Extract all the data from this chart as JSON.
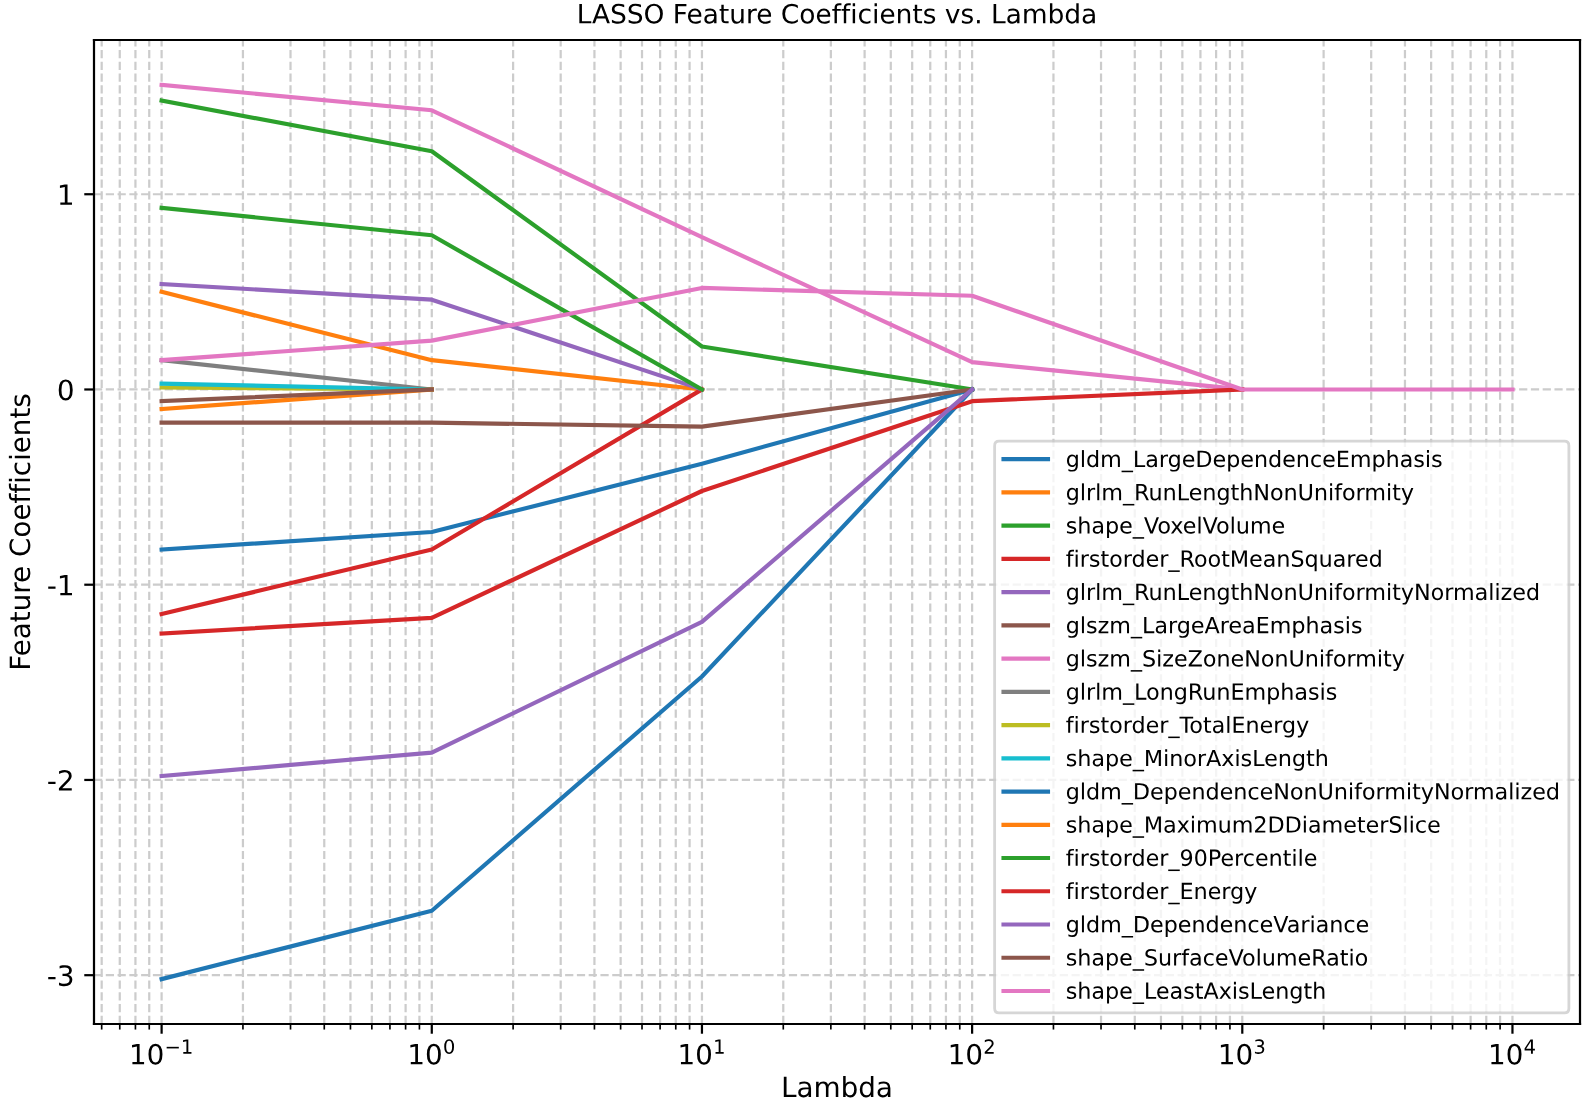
{
  "chart_data": {
    "type": "line",
    "title": "LASSO Feature Coefficients vs. Lambda",
    "xlabel": "Lambda",
    "ylabel": "Feature Coefficients",
    "x": [
      0.1,
      1,
      10,
      100,
      1000,
      10000
    ],
    "log": "x",
    "grid": true,
    "legend": "bottom right",
    "marker": "none",
    "line_style": "solid",
    "xlim": [
      0.0562,
      17783
    ],
    "ylim": [
      -3.25,
      1.79
    ],
    "xticks": [
      {
        "value": 0.1,
        "label": "10$^{−1}$"
      },
      {
        "value": 1,
        "label": "10$^{0}$"
      },
      {
        "value": 10,
        "label": "10$^{1}$"
      },
      {
        "value": 100,
        "label": "10$^{2}$"
      },
      {
        "value": 1000,
        "label": "10$^{3}$"
      },
      {
        "value": 10000,
        "label": "10$^{4}$"
      }
    ],
    "yticks": [
      -3,
      -2,
      -1,
      0,
      1
    ],
    "series": [
      {
        "name": "gldm_LargeDependenceEmphasis",
        "color": "#1f77b4",
        "values": [
          -0.82,
          -0.73,
          -0.38,
          0,
          null,
          null
        ]
      },
      {
        "name": "glrlm_RunLengthNonUniformity",
        "color": "#ff7f0e",
        "values": [
          0.5,
          0.15,
          0,
          null,
          null,
          null
        ]
      },
      {
        "name": "shape_VoxelVolume",
        "color": "#2ca02c",
        "values": [
          1.48,
          1.22,
          0.22,
          0,
          null,
          null
        ]
      },
      {
        "name": "firstorder_RootMeanSquared",
        "color": "#d62728",
        "values": [
          -1.15,
          -0.82,
          0,
          null,
          null,
          null
        ]
      },
      {
        "name": "glrlm_RunLengthNonUniformityNormalized",
        "color": "#9467bd",
        "values": [
          0.54,
          0.46,
          0,
          null,
          null,
          null
        ]
      },
      {
        "name": "glszm_LargeAreaEmphasis",
        "color": "#8c564b",
        "values": [
          -0.17,
          -0.17,
          -0.19,
          0,
          null,
          null
        ]
      },
      {
        "name": "glszm_SizeZoneNonUniformity",
        "color": "#e377c2",
        "values": [
          1.56,
          1.43,
          0.78,
          0.14,
          0,
          null
        ]
      },
      {
        "name": "glrlm_LongRunEmphasis",
        "color": "#7f7f7f",
        "values": [
          0.15,
          0,
          null,
          null,
          null,
          null
        ]
      },
      {
        "name": "firstorder_TotalEnergy",
        "color": "#bcbd22",
        "values": [
          0.01,
          0,
          null,
          null,
          null,
          null
        ]
      },
      {
        "name": "shape_MinorAxisLength",
        "color": "#17becf",
        "values": [
          0.03,
          0,
          null,
          null,
          null,
          null
        ]
      },
      {
        "name": "gldm_DependenceNonUniformityNormalized",
        "color": "#1f77b4",
        "values": [
          -3.02,
          -2.67,
          -1.47,
          0,
          null,
          null
        ]
      },
      {
        "name": "shape_Maximum2DDiameterSlice",
        "color": "#ff7f0e",
        "values": [
          -0.1,
          0,
          null,
          null,
          null,
          null
        ]
      },
      {
        "name": "firstorder_90Percentile",
        "color": "#2ca02c",
        "values": [
          0.93,
          0.79,
          0,
          null,
          null,
          null
        ]
      },
      {
        "name": "firstorder_Energy",
        "color": "#d62728",
        "values": [
          -1.25,
          -1.17,
          -0.52,
          -0.06,
          0,
          null
        ]
      },
      {
        "name": "gldm_DependenceVariance",
        "color": "#9467bd",
        "values": [
          -1.98,
          -1.86,
          -1.19,
          0,
          null,
          null
        ]
      },
      {
        "name": "shape_SurfaceVolumeRatio",
        "color": "#8c564b",
        "values": [
          -0.06,
          0,
          null,
          null,
          null,
          null
        ]
      },
      {
        "name": "shape_LeastAxisLength",
        "color": "#e377c2",
        "values": [
          0.15,
          0.25,
          0.52,
          0.48,
          0,
          0
        ]
      }
    ]
  }
}
